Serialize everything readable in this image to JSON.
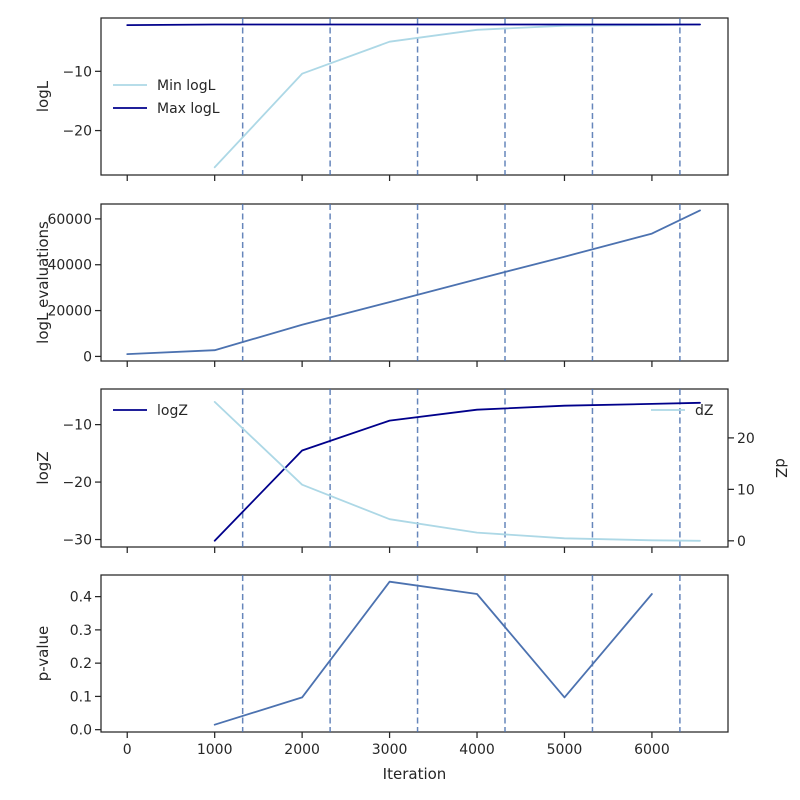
{
  "colors": {
    "light_blue": "#add8e6",
    "navy": "#00008b",
    "steel": "#4c72b0",
    "vline": "#4c72b0",
    "axis": "#262626"
  },
  "chart_data": [
    {
      "type": "line",
      "ylabel": "logL",
      "xlim": [
        -300,
        6870
      ],
      "ylim": [
        -27.5,
        -1.0
      ],
      "yticks": [
        -20,
        -10
      ],
      "ytick_labels": [
        "−20",
        "−10"
      ],
      "show_xticklabels": false,
      "vlines": [
        1320,
        2320,
        3320,
        4320,
        5320,
        6320
      ],
      "legend": {
        "placement": "center-left"
      },
      "series": [
        {
          "name": "Min logL",
          "color": "#add8e6",
          "x": [
            1000,
            2000,
            3000,
            4000,
            5000,
            6000,
            6550
          ],
          "y": [
            -26.2,
            -10.4,
            -5.0,
            -3.0,
            -2.3,
            -2.2,
            -2.1
          ]
        },
        {
          "name": "Max logL",
          "color": "#00008b",
          "x": [
            0,
            1000,
            2000,
            3000,
            4000,
            5000,
            6000,
            6550
          ],
          "y": [
            -2.2,
            -2.1,
            -2.1,
            -2.1,
            -2.1,
            -2.1,
            -2.1,
            -2.1
          ]
        }
      ]
    },
    {
      "type": "line",
      "ylabel": "logL evaluations",
      "xlim": [
        -300,
        6870
      ],
      "ylim": [
        -2000,
        66500
      ],
      "yticks": [
        0,
        20000,
        40000,
        60000
      ],
      "ytick_labels": [
        "0",
        "20000",
        "40000",
        "60000"
      ],
      "show_xticklabels": false,
      "vlines": [
        1320,
        2320,
        3320,
        4320,
        5320,
        6320
      ],
      "series": [
        {
          "color": "#4c72b0",
          "x": [
            0,
            1000,
            2000,
            3000,
            4000,
            5000,
            6000,
            6550
          ],
          "y": [
            1000,
            2700,
            13800,
            23700,
            33700,
            43500,
            53600,
            63700
          ]
        }
      ]
    },
    {
      "type": "line",
      "ylabel": "logZ",
      "y2label": "dZ",
      "xlim": [
        -300,
        6870
      ],
      "ylim": [
        -31.3,
        -3.8
      ],
      "yticks": [
        -30,
        -20,
        -10
      ],
      "ytick_labels": [
        "−30",
        "−20",
        "−10"
      ],
      "y2lim": [
        -1.2,
        29.5
      ],
      "y2ticks": [
        0,
        10,
        20
      ],
      "y2tick_labels": [
        "0",
        "10",
        "20"
      ],
      "show_xticklabels": false,
      "vlines": [
        1320,
        2320,
        3320,
        4320,
        5320,
        6320
      ],
      "series": [
        {
          "name": "logZ",
          "color": "#00008b",
          "axis": "left",
          "legend": "top-left",
          "x": [
            1000,
            2000,
            3000,
            4000,
            5000,
            6000,
            6550
          ],
          "y": [
            -30.2,
            -14.5,
            -9.3,
            -7.4,
            -6.7,
            -6.4,
            -6.2
          ]
        },
        {
          "name": "dZ",
          "color": "#add8e6",
          "axis": "right",
          "legend": "top-right",
          "x": [
            1000,
            2000,
            3000,
            4000,
            5000,
            6000,
            6550
          ],
          "y": [
            27.0,
            10.9,
            4.2,
            1.6,
            0.5,
            0.1,
            0.0
          ]
        }
      ]
    },
    {
      "type": "line",
      "ylabel": "p-value",
      "xlabel": "Iteration",
      "xlim": [
        -300,
        6870
      ],
      "ylim": [
        -0.007,
        0.465
      ],
      "yticks": [
        0.0,
        0.1,
        0.2,
        0.3,
        0.4
      ],
      "ytick_labels": [
        "0.0",
        "0.1",
        "0.2",
        "0.3",
        "0.4"
      ],
      "xticks": [
        0,
        1000,
        2000,
        3000,
        4000,
        5000,
        6000
      ],
      "xtick_labels": [
        "0",
        "1000",
        "2000",
        "3000",
        "4000",
        "5000",
        "6000"
      ],
      "show_xticklabels": true,
      "vlines": [
        1320,
        2320,
        3320,
        4320,
        5320,
        6320
      ],
      "series": [
        {
          "color": "#4c72b0",
          "x": [
            1000,
            2000,
            3000,
            4000,
            5000,
            6000
          ],
          "y": [
            0.015,
            0.097,
            0.445,
            0.408,
            0.097,
            0.408
          ]
        }
      ]
    }
  ]
}
